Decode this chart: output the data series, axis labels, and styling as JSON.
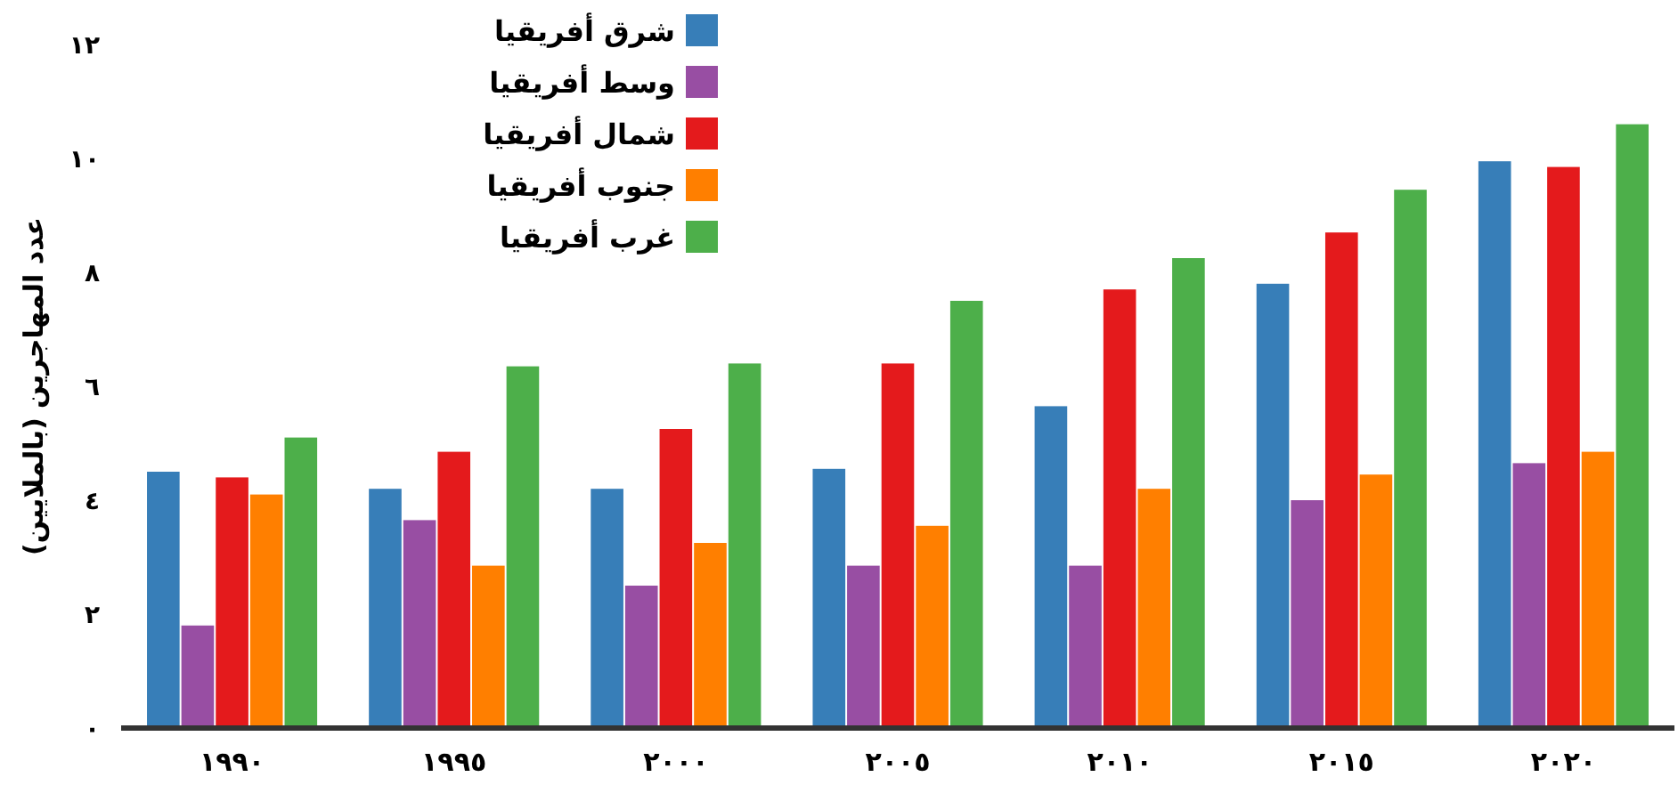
{
  "chart_data": {
    "type": "bar",
    "ylabel": "عدد المهاجرين (بالملايين)",
    "categories": [
      "١٩٩٠",
      "١٩٩٥",
      "٢٠٠٠",
      "٢٠٠٥",
      "٢٠١٠",
      "٢٠١٥",
      "٢٠٢٠"
    ],
    "series": [
      {
        "name": "شرق أفريقيا",
        "color": "#377eb8",
        "values": [
          4.5,
          4.2,
          4.2,
          4.55,
          5.65,
          7.8,
          9.95
        ]
      },
      {
        "name": "وسط أفريقيا",
        "color": "#984ea3",
        "values": [
          1.8,
          3.65,
          2.5,
          2.85,
          2.85,
          4.0,
          4.65
        ]
      },
      {
        "name": "شمال أفريقيا",
        "color": "#e41a1c",
        "values": [
          4.4,
          4.85,
          5.25,
          6.4,
          7.7,
          8.7,
          9.85
        ]
      },
      {
        "name": "جنوب أفريقيا",
        "color": "#ff7f00",
        "values": [
          4.1,
          2.85,
          3.25,
          3.55,
          4.2,
          4.45,
          4.85
        ]
      },
      {
        "name": "غرب أفريقيا",
        "color": "#4daf4a",
        "values": [
          5.1,
          6.35,
          6.4,
          7.5,
          8.25,
          9.45,
          10.6
        ]
      }
    ],
    "ylim": [
      0,
      12
    ],
    "yticks": [
      {
        "value": 0,
        "label": "٠"
      },
      {
        "value": 2,
        "label": "٢"
      },
      {
        "value": 4,
        "label": "٤"
      },
      {
        "value": 6,
        "label": "٦"
      },
      {
        "value": 8,
        "label": "٨"
      },
      {
        "value": 10,
        "label": "١٠"
      },
      {
        "value": 12,
        "label": "١٢"
      }
    ],
    "legend": "top"
  }
}
